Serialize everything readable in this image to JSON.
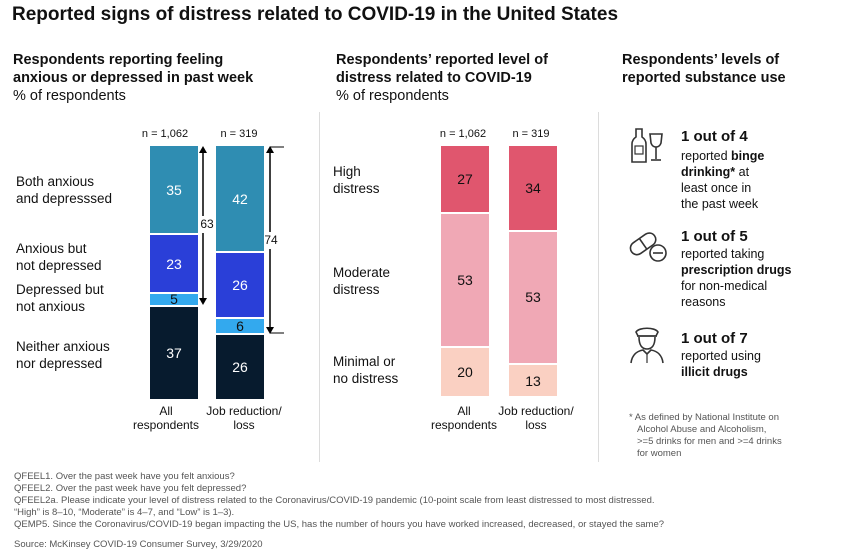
{
  "title": "Reported signs of distress related to COVID-19 in the United States",
  "colors": {
    "both": "#2f8db2",
    "anxious": "#2a3fd8",
    "depressed": "#33a9ee",
    "neither": "#071b2e",
    "high": "#e0566e",
    "moderate": "#f0a8b5",
    "minimal": "#fad0c2"
  },
  "left_panel": {
    "heading_line1": "Respondents reporting feeling",
    "heading_line2": "anxious or depressed in past week",
    "subheading": "% of respondents",
    "category_labels": {
      "both": [
        "Both anxious",
        "and depresssed"
      ],
      "anxious": [
        "Anxious but",
        "not depressed"
      ],
      "depressed": [
        "Depressed but",
        "not anxious"
      ],
      "neither": [
        "Neither anxious",
        "nor depressed"
      ]
    }
  },
  "middle_panel": {
    "heading_line1": "Respondents’ reported level of",
    "heading_line2": "distress related to COVID-19",
    "subheading": "% of respondents",
    "category_labels": {
      "high": [
        "High",
        "distress"
      ],
      "moderate": [
        "Moderate",
        "distress"
      ],
      "minimal": [
        "Minimal or",
        "no distress"
      ]
    }
  },
  "chart_data": [
    {
      "type": "bar",
      "stacked": true,
      "title": "Respondents reporting feeling anxious or depressed in past week",
      "ylabel": "% of respondents",
      "categories": [
        "All respondents",
        "Job reduction/ loss"
      ],
      "category_lines": [
        [
          "All",
          "respondents"
        ],
        [
          "Job reduction/",
          "loss"
        ]
      ],
      "sample_sizes": [
        "n = 1,062",
        "n = 319"
      ],
      "series": [
        {
          "name": "Both anxious and depresssed",
          "key": "both",
          "values": [
            35,
            42
          ]
        },
        {
          "name": "Anxious but not depressed",
          "key": "anxious",
          "values": [
            23,
            26
          ]
        },
        {
          "name": "Depressed but not anxious",
          "key": "depressed",
          "values": [
            5,
            6
          ]
        },
        {
          "name": "Neither anxious nor depressed",
          "key": "neither",
          "values": [
            37,
            26
          ]
        }
      ],
      "brackets": [
        63,
        74
      ]
    },
    {
      "type": "bar",
      "stacked": true,
      "title": "Respondents’ reported level of distress related to COVID-19",
      "ylabel": "% of respondents",
      "categories": [
        "All respondents",
        "Job reduction/ loss"
      ],
      "category_lines": [
        [
          "All",
          "respondents"
        ],
        [
          "Job reduction/",
          "loss"
        ]
      ],
      "sample_sizes": [
        "n = 1,062",
        "n = 319"
      ],
      "series": [
        {
          "name": "High distress",
          "key": "high",
          "values": [
            27,
            34
          ]
        },
        {
          "name": "Moderate distress",
          "key": "moderate",
          "values": [
            53,
            53
          ]
        },
        {
          "name": "Minimal or no distress",
          "key": "minimal",
          "values": [
            20,
            13
          ]
        }
      ]
    }
  ],
  "right_panel": {
    "heading_line1": "Respondents’ levels of",
    "heading_line2": "reported substance use",
    "stats": [
      {
        "icon": "wine-bottle-glass-icon",
        "stat": "1 out of 4",
        "lines": [
          [
            "reported ",
            "binge"
          ],
          [
            "",
            "drinking*",
            " at"
          ],
          [
            "least once in",
            ""
          ],
          [
            "the past week",
            ""
          ]
        ]
      },
      {
        "icon": "pills-icon",
        "stat": "1 out of 5",
        "lines": [
          [
            "reported taking",
            ""
          ],
          [
            "",
            "prescription drugs"
          ],
          [
            "for non-medical",
            ""
          ],
          [
            "reasons",
            ""
          ]
        ]
      },
      {
        "icon": "police-officer-icon",
        "stat": "1 out of 7",
        "lines": [
          [
            "reported using",
            ""
          ],
          [
            "",
            "illicit drugs"
          ]
        ]
      }
    ],
    "footnote": [
      "* As defined by National Institute on",
      "Alcohol Abuse and Alcoholism,",
      ">=5 drinks for men and >=4 drinks",
      "for women"
    ]
  },
  "footer": {
    "questions": [
      "QFEEL1. Over the past week have you felt anxious?",
      "QFEEL2. Over the past week have you felt depressed?",
      "QFEEL2a. Please indicate your level of distress related to the Coronavirus/COVID-19 pandemic (10-point scale from least distressed to most distressed.",
      "“High” is 8–10, “Moderate” is 4–7, and “Low” is 1–3).",
      "QEMP5. Since the Coronavirus/COVID-19 began impacting the US, has the number of hours you have worked increased, decreased, or stayed the same?"
    ],
    "source": "Source: McKinsey COVID-19 Consumer Survey, 3/29/2020"
  }
}
